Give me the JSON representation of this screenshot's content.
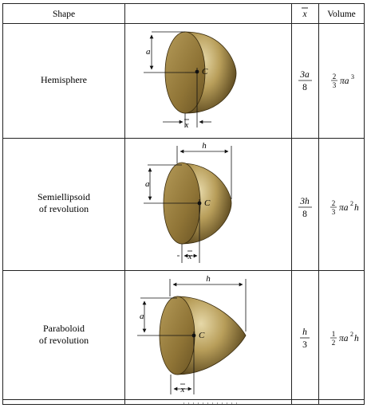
{
  "table": {
    "headers": {
      "shape": "Shape",
      "xbar": "x",
      "volume": "Volume"
    },
    "rows": [
      {
        "name_lines": [
          "Hemisphere"
        ],
        "xbar_num": "3a",
        "xbar_den": "8",
        "volume_coef_num": "2",
        "volume_coef_den": "3",
        "volume_expr": "πa",
        "volume_exp": "3",
        "volume_tail": "",
        "dim_a": "a",
        "dim_c": "C",
        "dim_xbar": "x"
      },
      {
        "name_lines": [
          "Semiellipsoid",
          "of revolution"
        ],
        "xbar_num": "3h",
        "xbar_den": "8",
        "volume_coef_num": "2",
        "volume_coef_den": "3",
        "volume_expr": "πa",
        "volume_exp": "2",
        "volume_tail": "h",
        "dim_a": "a",
        "dim_h": "h",
        "dim_c": "C",
        "dim_xbar": "x"
      },
      {
        "name_lines": [
          "Paraboloid",
          "of revolution"
        ],
        "xbar_num": "h",
        "xbar_den": "3",
        "volume_coef_num": "1",
        "volume_coef_den": "2",
        "volume_expr": "πa",
        "volume_exp": "2",
        "volume_tail": "h",
        "dim_a": "a",
        "dim_h": "h",
        "dim_c": "C",
        "dim_xbar": "x"
      }
    ]
  },
  "colors": {
    "solid_light": "#d8c690",
    "solid_mid": "#a98f4c",
    "solid_dark": "#5e4a1e",
    "face": "#9c8240",
    "rule": "#222222"
  }
}
